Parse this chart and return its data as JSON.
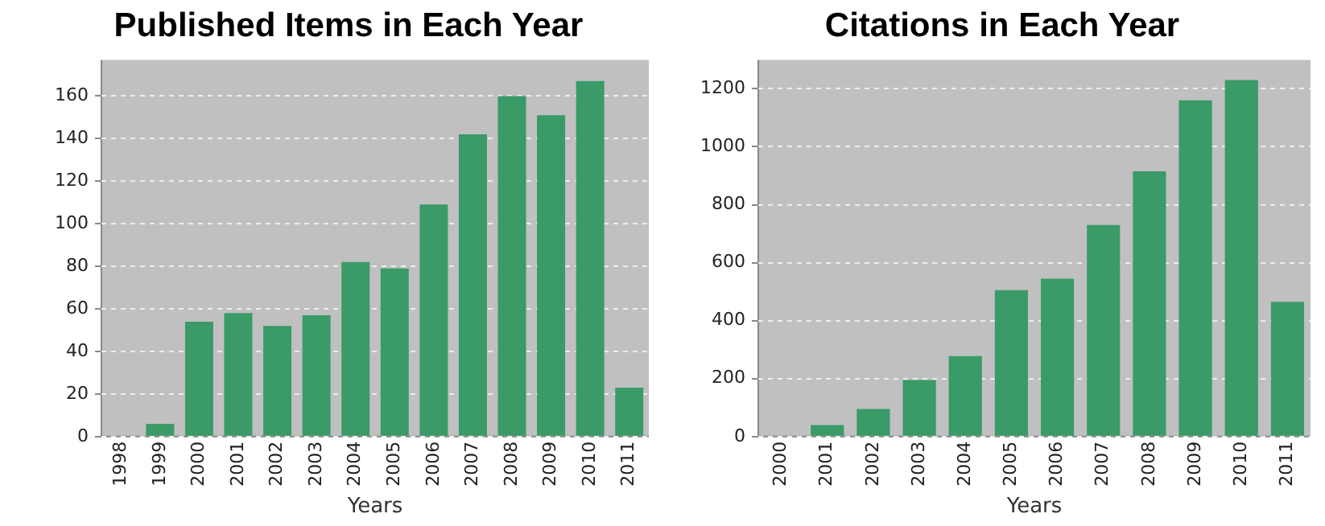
{
  "chart_data": [
    {
      "type": "bar",
      "title": "Published Items in Each Year",
      "xlabel": "Years",
      "categories": [
        "1998",
        "1999",
        "2000",
        "2001",
        "2002",
        "2003",
        "2004",
        "2005",
        "2006",
        "2007",
        "2008",
        "2009",
        "2010",
        "2011"
      ],
      "values": [
        0,
        6,
        54,
        58,
        52,
        57,
        82,
        79,
        109,
        142,
        160,
        151,
        167,
        23
      ],
      "color": "#3a9a68",
      "ylim": [
        0,
        177
      ],
      "yticks": [
        0,
        20,
        40,
        60,
        80,
        100,
        120,
        140,
        160
      ],
      "grid": "y",
      "legend": false
    },
    {
      "type": "bar",
      "title": "Citations in Each Year",
      "xlabel": "Years",
      "categories": [
        "2000",
        "2001",
        "2002",
        "2003",
        "2004",
        "2005",
        "2006",
        "2007",
        "2008",
        "2009",
        "2010",
        "2011"
      ],
      "values": [
        0,
        40,
        95,
        195,
        278,
        505,
        545,
        730,
        915,
        1160,
        1230,
        465
      ],
      "color": "#3a9a68",
      "ylim": [
        0,
        1300
      ],
      "yticks": [
        0,
        200,
        400,
        600,
        800,
        1000,
        1200
      ],
      "grid": "y",
      "legend": false
    }
  ]
}
